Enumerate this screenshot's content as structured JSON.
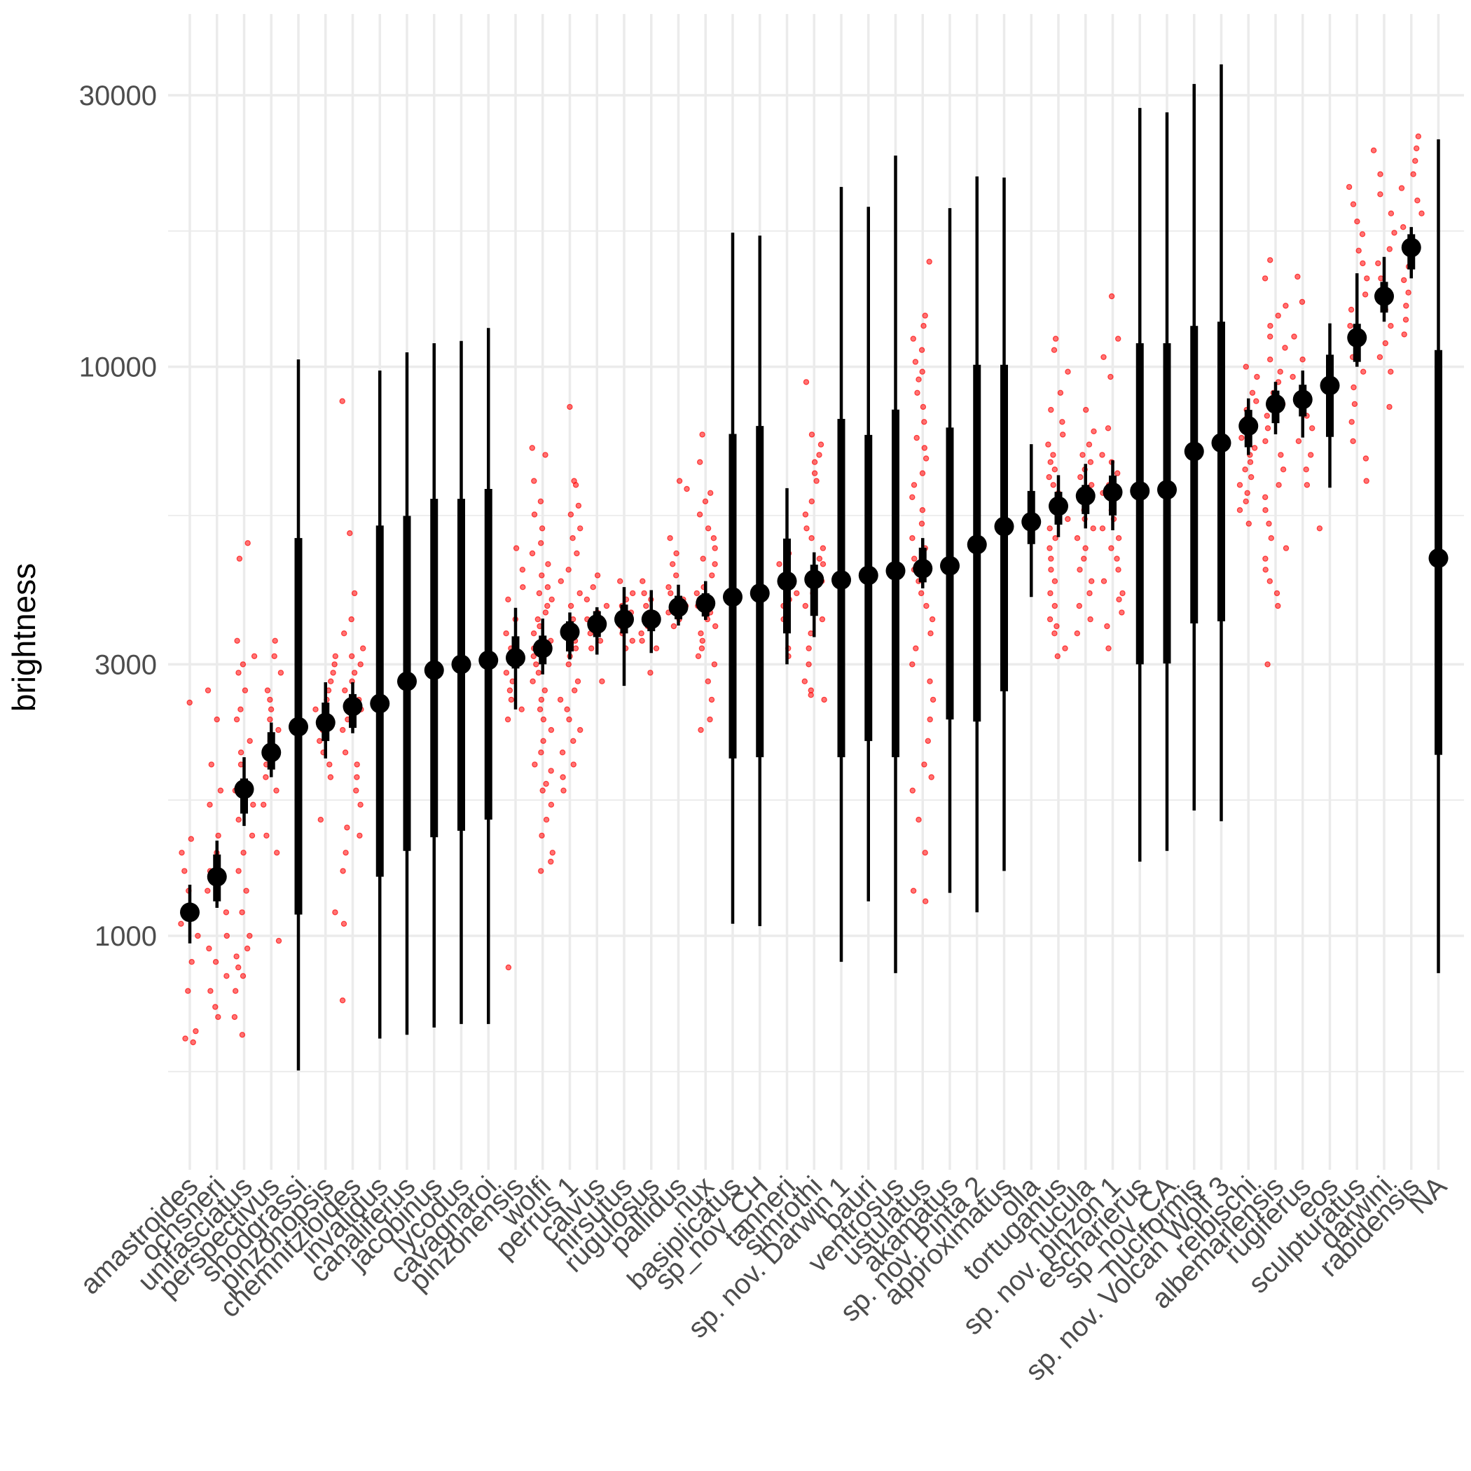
{
  "chart_data": {
    "type": "scatter",
    "title": "",
    "xlabel": "",
    "ylabel": "brightness",
    "y_scale": "log10",
    "ylim": [
      550,
      36000
    ],
    "y_ticks": [
      1000,
      3000,
      10000,
      30000
    ],
    "y_tick_labels": [
      "1000",
      "3000",
      "10000",
      "30000"
    ],
    "grid": true,
    "legend": "none",
    "colors": {
      "points": "#ff0000",
      "summary": "#000000",
      "grid": "#ebebeb",
      "background": "#ffffff"
    },
    "categories": [
      "amastroides",
      "ochsneri",
      "unifasciatus",
      "perspectivus",
      "snodgrassi",
      "pinzonopsis",
      "chemnitzioides",
      "invalidus",
      "canaliferus",
      "jacobinus",
      "lycodus",
      "cavagnaroi",
      "pinzonensis",
      "wolfi",
      "perrus 1",
      "calvus",
      "hirsutus",
      "rugulosus",
      "pallidus",
      "nux",
      "basiplicatus",
      "sp_nov_CH",
      "tanneri",
      "simrothi",
      "sp. nov. Darwin 1",
      "bauri",
      "ventrosus",
      "ustulatus",
      "akamatus",
      "sp. nov. Pinta 2",
      "approximatus",
      "olla",
      "tortuganus",
      "nucula",
      "sp. nov. pinzon 1",
      "escharierus",
      "sp_nov_CA",
      "nuciformis",
      "sp. nov. Volcan Wolf 3",
      "reibischi",
      "albemarlensis",
      "rugiferus",
      "eos",
      "sculpturatus",
      "darwini",
      "rabidensis",
      "NA"
    ],
    "series": [
      {
        "type": "point-interval",
        "median": [
          1100,
          1270,
          1810,
          2100,
          2330,
          2370,
          2530,
          2560,
          2800,
          2930,
          3000,
          3050,
          3080,
          3200,
          3420,
          3530,
          3600,
          3600,
          3780,
          3840,
          3940,
          4000,
          4200,
          4230,
          4220,
          4300,
          4380,
          4420,
          4470,
          4870,
          5240,
          5340,
          5690,
          5930,
          6020,
          6050,
          6080,
          7100,
          7350,
          7870,
          8600,
          8760,
          9270,
          11250,
          13300,
          16200,
          4610
        ],
        "inner_low": [
          1060,
          1150,
          1640,
          1960,
          1090,
          2200,
          2320,
          1270,
          1410,
          1490,
          1530,
          1600,
          2950,
          3000,
          3160,
          3350,
          3400,
          3430,
          3600,
          3640,
          2050,
          2060,
          3400,
          3650,
          2060,
          2200,
          2060,
          4180,
          2400,
          2380,
          2690,
          4880,
          5280,
          5510,
          5480,
          3000,
          3010,
          3540,
          3570,
          7220,
          7960,
          8180,
          7530,
          10200,
          12450,
          14830,
          2080
        ],
        "inner_high": [
          1140,
          1390,
          1890,
          2280,
          5000,
          2570,
          2660,
          5260,
          5470,
          5860,
          5860,
          6100,
          3360,
          3370,
          3570,
          3720,
          3820,
          3700,
          3960,
          4000,
          7620,
          7870,
          4990,
          4490,
          8100,
          7590,
          8410,
          4810,
          7820,
          10080,
          10080,
          6050,
          6030,
          6200,
          6440,
          11000,
          11000,
          11800,
          12000,
          8400,
          9080,
          9300,
          10500,
          11900,
          14100,
          17100,
          10700
        ],
        "outer_low": [
          970,
          1120,
          1560,
          1900,
          580,
          2050,
          2270,
          660,
          670,
          690,
          700,
          700,
          2500,
          2880,
          3060,
          3120,
          2750,
          3140,
          3510,
          3590,
          1050,
          1040,
          3000,
          3350,
          900,
          1150,
          860,
          4080,
          1190,
          1100,
          1300,
          3940,
          5020,
          5200,
          5160,
          1350,
          1410,
          1660,
          1590,
          7000,
          7610,
          7510,
          6130,
          10000,
          12000,
          14300,
          860
        ],
        "outer_high": [
          1230,
          1470,
          2060,
          2370,
          10300,
          2790,
          2790,
          9850,
          10600,
          11000,
          11100,
          11700,
          3770,
          3610,
          3700,
          3780,
          4100,
          4050,
          4140,
          4200,
          17200,
          17000,
          6120,
          4720,
          20700,
          19100,
          23500,
          5000,
          19000,
          21600,
          21500,
          7310,
          6450,
          6750,
          6850,
          28500,
          28000,
          31400,
          34000,
          8800,
          9410,
          9850,
          11920,
          14600,
          15600,
          17600,
          25100
        ]
      },
      {
        "type": "jittered-points",
        "color": "#ff0000",
        "groups": [
          {
            "category": "amastroides",
            "y": [
              2570,
              1480,
              1400,
              1300,
              1200,
              1080,
              1050,
              1000,
              900,
              800,
              660,
              680,
              650
            ]
          },
          {
            "category": "ochsneri",
            "y": [
              2700,
              2400,
              2000,
              1800,
              1700,
              1500,
              1400,
              1300,
              1200,
              1100,
              1000,
              950,
              900,
              850,
              800,
              750,
              720
            ]
          },
          {
            "category": "unifasciatus",
            "y": [
              4900,
              4600,
              3300,
              3100,
              3000,
              2900,
              2700,
              2500,
              2400,
              2200,
              2100,
              2000,
              1800,
              1700,
              1600,
              1500,
              1400,
              1300,
              1200,
              1100,
              1000,
              950,
              920,
              880,
              850,
              800,
              720,
              670
            ]
          },
          {
            "category": "perspectivus",
            "y": [
              3300,
              3100,
              2900,
              2700,
              2600,
              2500,
              2400,
              2300,
              2200,
              2100,
              2000,
              1900,
              1800,
              1700,
              1500,
              1400,
              980
            ]
          },
          {
            "category": "pinzonopsis",
            "y": [
              3100,
              3000,
              2900,
              2800,
              2700,
              2600,
              2500,
              2400,
              2300,
              2200,
              2100,
              2000,
              1900,
              1600,
              1100
            ]
          },
          {
            "category": "chemnitzioides",
            "y": [
              8700,
              5100,
              4000,
              3600,
              3400,
              3200,
              3100,
              3000,
              2900,
              2800,
              2700,
              2600,
              2500,
              2400,
              2300,
              2100,
              2000,
              1900,
              1800,
              1700,
              1550,
              1500,
              1400,
              1300,
              1050,
              770
            ]
          },
          {
            "category": "pinzonensis",
            "y": [
              4800,
              4400,
              4100,
              3900,
              3600,
              3400,
              3200,
              3000,
              2900,
              2800,
              2700,
              2600,
              2500,
              2400,
              880
            ]
          },
          {
            "category": "wolfi",
            "y": [
              7200,
              7000,
              6300,
              5800,
              5500,
              5200,
              4900,
              4700,
              4500,
              4300,
              4100,
              4000,
              3900,
              3800,
              3700,
              3600,
              3500,
              3400,
              3300,
              3200,
              3100,
              3000,
              2900,
              2800,
              2700,
              2600,
              2500,
              2400,
              2300,
              2200,
              2100,
              2000,
              1950,
              1850,
              1800,
              1700,
              1600,
              1500,
              1400,
              1350,
              1300
            ]
          },
          {
            "category": "perrus 1",
            "y": [
              8500,
              6300,
              6200,
              5700,
              5500,
              5200,
              5000,
              4700,
              4400,
              4200,
              4000,
              3800,
              3600,
              3400,
              3300,
              3200,
              3100,
              3000,
              2800,
              2700,
              2600,
              2500,
              2400,
              2300,
              2200,
              2100,
              2000,
              1900,
              1800
            ]
          },
          {
            "category": "calvus",
            "y": [
              4300,
              4100,
              3900,
              3800,
              3700,
              3600,
              3500,
              3400,
              3300,
              3200,
              2800
            ]
          },
          {
            "category": "hirsutus",
            "y": [
              4200,
              4000,
              3900,
              3800,
              3700,
              3600,
              3500,
              3400,
              3300,
              3200
            ]
          },
          {
            "category": "rugulosus",
            "y": [
              4200,
              4000,
              3900,
              3800,
              3700,
              3600,
              3500,
              3400,
              3300,
              3200,
              2900
            ]
          },
          {
            "category": "pallidus",
            "y": [
              6300,
              6100,
              5000,
              4700,
              4500,
              4300,
              4100,
              4000,
              3900,
              3800,
              3700,
              3600,
              3500
            ]
          },
          {
            "category": "nux",
            "y": [
              7600,
              6800,
              6000,
              5800,
              5500,
              5200,
              5000,
              4800,
              4600,
              4500,
              4300,
              4100,
              4000,
              3900,
              3800,
              3700,
              3600,
              3500,
              3400,
              3300,
              3200,
              3100,
              3000,
              2800,
              2600,
              2400,
              2300
            ]
          },
          {
            "category": "tanneri",
            "y": [
              4700,
              4500,
              4200,
              4000,
              3900,
              3800,
              3600,
              3200,
              3100
            ]
          },
          {
            "category": "simrothi",
            "y": [
              9400,
              7600,
              7300,
              7000,
              6800,
              6500,
              6300,
              5800,
              5500,
              5200,
              5000,
              4800,
              4600,
              4500,
              4300,
              4200,
              4000,
              3800,
              3600,
              3400,
              3200,
              3000,
              2800,
              2700,
              2650,
              2600
            ]
          },
          {
            "category": "ustulatus",
            "y": [
              15300,
              12300,
              11800,
              11200,
              10700,
              10200,
              9800,
              9500,
              9000,
              8500,
              8000,
              7500,
              7200,
              6900,
              6500,
              6200,
              5900,
              5600,
              5300,
              5000,
              4800,
              4600,
              4400,
              4200,
              4000,
              3800,
              3600,
              3400,
              3200,
              3000,
              2800,
              2600,
              2400,
              2200,
              2000,
              1900,
              1800,
              1600,
              1400,
              1200,
              1150
            ]
          },
          {
            "category": "tortuganus",
            "y": [
              11200,
              10700,
              9800,
              9000,
              8400,
              8000,
              7600,
              7300,
              7000,
              6800,
              6600,
              6400,
              6200,
              6000,
              5800,
              5600,
              5400,
              5200,
              5000,
              4800,
              4600,
              4400,
              4200,
              4000,
              3800,
              3600,
              3500,
              3400,
              3200,
              3100
            ]
          },
          {
            "category": "nucula",
            "y": [
              8400,
              7700,
              7300,
              7000,
              6800,
              6600,
              6400,
              6200,
              6000,
              5800,
              5600,
              5400,
              5200,
              5000,
              4800,
              4600,
              4400,
              4200,
              4000,
              3800,
              3600,
              3400
            ]
          },
          {
            "category": "sp. nov. pinzon 1",
            "y": [
              13300,
              11200,
              10400,
              9600,
              7800,
              7000,
              6800,
              6500,
              6200,
              6000,
              5800,
              5600,
              5400,
              5200,
              5000,
              4800,
              4600,
              4400,
              4200,
              4000,
              3900,
              3700,
              3500,
              3200
            ]
          },
          {
            "category": "reibischi",
            "y": [
              10000,
              9600,
              9000,
              8700,
              8400,
              8100,
              7800,
              7500,
              7200,
              7000,
              6800,
              6600,
              6400,
              6200,
              6000,
              5800,
              5600,
              5300
            ]
          },
          {
            "category": "albemarlensis",
            "y": [
              15400,
              14300,
              12800,
              12300,
              11800,
              11300,
              10800,
              10300,
              9800,
              9400,
              9000,
              8600,
              8200,
              7800,
              7400,
              7000,
              6600,
              6200,
              5900,
              5600,
              5300,
              5000,
              4800,
              4600,
              4400,
              4200,
              4000,
              3800,
              3000
            ]
          },
          {
            "category": "rugiferus",
            "y": [
              14400,
              13000,
              11300,
              10300,
              9600,
              9000,
              8600,
              8200,
              7800,
              7400,
              7000,
              6600,
              6200
            ]
          },
          {
            "category": "eos",
            "y": [
              5200
            ]
          },
          {
            "category": "sculpturatus",
            "y": [
              20700,
              19300,
              18000,
              17100,
              16000,
              15200,
              14300,
              13400,
              12600,
              11800,
              11000,
              10400,
              9800,
              9200,
              8600,
              8000,
              7400,
              6900,
              6300
            ]
          },
          {
            "category": "darwini",
            "y": [
              24000,
              21800,
              20100,
              18600,
              17200,
              16100,
              15200,
              14300,
              13400,
              12600,
              11800,
              11000,
              10400,
              9800,
              8500
            ]
          },
          {
            "category": "rabidensis",
            "y": [
              25400,
              24200,
              23000,
              21800,
              20600,
              19600,
              18600,
              17600,
              16700,
              15800,
              15000,
              14200,
              13500,
              12800,
              12100,
              11400
            ]
          }
        ]
      }
    ]
  }
}
